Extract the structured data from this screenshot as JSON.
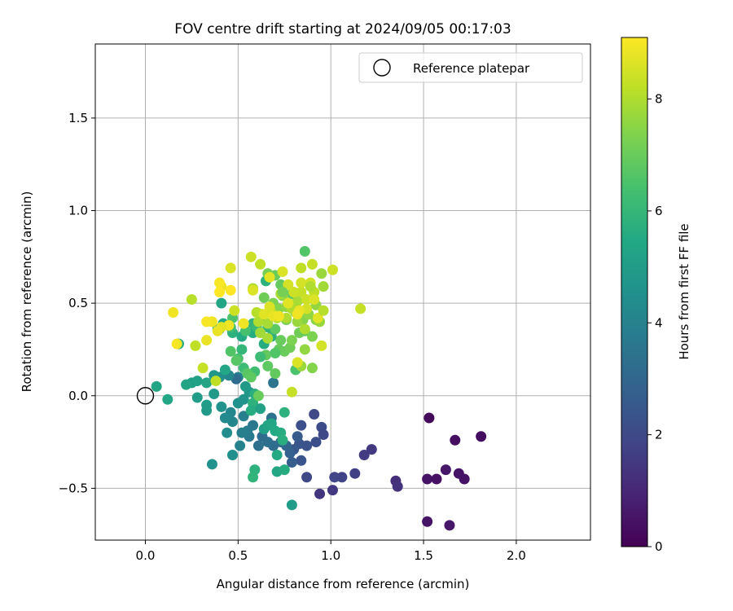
{
  "chart_data": {
    "type": "scatter",
    "title": "FOV centre drift starting at 2024/09/05 00:17:03",
    "xlabel": "Angular distance from reference (arcmin)",
    "ylabel": "Rotation from reference (arcmin)",
    "xlim": [
      -0.27,
      2.4
    ],
    "ylim": [
      -0.78,
      1.9
    ],
    "x_ticks": [
      0.0,
      0.5,
      1.0,
      1.5,
      2.0
    ],
    "x_tick_labels": [
      "0.0",
      "0.5",
      "1.0",
      "1.5",
      "2.0"
    ],
    "y_ticks": [
      -0.5,
      0.0,
      0.5,
      1.0,
      1.5
    ],
    "y_tick_labels": [
      "−0.5",
      "0.0",
      "0.5",
      "1.0",
      "1.5"
    ],
    "grid": true,
    "legend": {
      "position": "top-right",
      "entries": [
        "Reference platepar"
      ]
    },
    "reference_point": {
      "x": 0.0,
      "y": 0.0
    },
    "colorbar": {
      "label": "Hours from first FF file",
      "min": 0,
      "max": 9.1,
      "ticks": [
        0,
        2,
        4,
        6,
        8
      ],
      "tick_labels": [
        "0",
        "2",
        "4",
        "6",
        "8"
      ],
      "colormap": "viridis"
    },
    "points": [
      [
        1.53,
        -0.12,
        0.2
      ],
      [
        1.67,
        -0.24,
        0.3
      ],
      [
        1.81,
        -0.22,
        0.3
      ],
      [
        1.52,
        -0.45,
        0.5
      ],
      [
        1.57,
        -0.45,
        0.4
      ],
      [
        1.62,
        -0.4,
        0.6
      ],
      [
        1.69,
        -0.42,
        0.5
      ],
      [
        1.72,
        -0.45,
        0.5
      ],
      [
        1.52,
        -0.68,
        0.5
      ],
      [
        1.64,
        -0.7,
        0.6
      ],
      [
        1.35,
        -0.46,
        1.2
      ],
      [
        1.36,
        -0.49,
        1.3
      ],
      [
        1.22,
        -0.29,
        1.5
      ],
      [
        1.18,
        -0.32,
        1.6
      ],
      [
        1.13,
        -0.42,
        1.7
      ],
      [
        1.06,
        -0.44,
        1.8
      ],
      [
        1.02,
        -0.44,
        1.9
      ],
      [
        1.01,
        -0.51,
        1.5
      ],
      [
        0.94,
        -0.53,
        1.4
      ],
      [
        0.87,
        -0.44,
        2.0
      ],
      [
        0.91,
        -0.1,
        2.0
      ],
      [
        0.95,
        -0.17,
        2.1
      ],
      [
        0.96,
        -0.21,
        2.0
      ],
      [
        0.92,
        -0.25,
        2.2
      ],
      [
        0.87,
        -0.27,
        2.3
      ],
      [
        0.83,
        -0.26,
        2.4
      ],
      [
        0.8,
        -0.29,
        2.5
      ],
      [
        0.84,
        -0.35,
        2.4
      ],
      [
        0.84,
        -0.16,
        2.2
      ],
      [
        0.82,
        -0.22,
        2.6
      ],
      [
        0.78,
        -0.31,
        2.8
      ],
      [
        0.79,
        -0.36,
        2.7
      ],
      [
        0.76,
        -0.27,
        3.0
      ],
      [
        0.73,
        -0.25,
        3.1
      ],
      [
        0.69,
        -0.27,
        3.2
      ],
      [
        0.66,
        -0.25,
        3.3
      ],
      [
        0.63,
        -0.22,
        3.2
      ],
      [
        0.61,
        -0.27,
        3.4
      ],
      [
        0.68,
        -0.12,
        3.4
      ],
      [
        0.69,
        0.07,
        3.5
      ],
      [
        0.58,
        -0.16,
        3.6
      ],
      [
        0.56,
        -0.22,
        3.7
      ],
      [
        0.55,
        -0.19,
        3.8
      ],
      [
        0.52,
        -0.2,
        3.9
      ],
      [
        0.53,
        -0.11,
        3.9
      ],
      [
        0.51,
        -0.27,
        4.0
      ],
      [
        0.47,
        -0.14,
        4.1
      ],
      [
        0.46,
        -0.09,
        4.2
      ],
      [
        0.43,
        -0.12,
        4.3
      ],
      [
        0.44,
        -0.2,
        4.4
      ],
      [
        0.47,
        -0.32,
        4.5
      ],
      [
        0.36,
        -0.37,
        4.6
      ],
      [
        0.5,
        -0.04,
        4.6
      ],
      [
        0.53,
        -0.02,
        4.7
      ],
      [
        0.56,
        0.02,
        4.8
      ],
      [
        0.54,
        0.05,
        4.9
      ],
      [
        0.5,
        0.1,
        4.0
      ],
      [
        0.49,
        0.09,
        3.2
      ],
      [
        0.45,
        0.11,
        4.2
      ],
      [
        0.4,
        0.1,
        4.5
      ],
      [
        0.37,
        0.11,
        4.8
      ],
      [
        0.41,
        -0.06,
        4.6
      ],
      [
        0.37,
        0.01,
        4.9
      ],
      [
        0.33,
        -0.05,
        5.0
      ],
      [
        0.33,
        -0.08,
        4.9
      ],
      [
        0.28,
        -0.01,
        5.0
      ],
      [
        0.25,
        0.07,
        5.1
      ],
      [
        0.28,
        0.08,
        5.2
      ],
      [
        0.22,
        0.06,
        5.3
      ],
      [
        0.12,
        -0.02,
        5.4
      ],
      [
        0.06,
        0.05,
        5.3
      ],
      [
        0.18,
        0.28,
        5.5
      ],
      [
        0.43,
        0.14,
        5.4
      ],
      [
        0.33,
        0.07,
        5.3
      ],
      [
        0.4,
        0.36,
        5.6
      ],
      [
        0.42,
        0.39,
        5.5
      ],
      [
        0.39,
        0.36,
        5.7
      ],
      [
        0.41,
        0.5,
        5.4
      ],
      [
        0.47,
        0.34,
        5.8
      ],
      [
        0.52,
        0.32,
        5.5
      ],
      [
        0.58,
        0.34,
        5.6
      ],
      [
        0.58,
        0.39,
        5.9
      ],
      [
        0.59,
        0.01,
        5.7
      ],
      [
        0.58,
        -0.04,
        5.8
      ],
      [
        0.57,
        -0.08,
        5.6
      ],
      [
        0.62,
        -0.07,
        5.2
      ],
      [
        0.64,
        -0.18,
        5.1
      ],
      [
        0.66,
        -0.16,
        5.3
      ],
      [
        0.68,
        -0.15,
        5.4
      ],
      [
        0.7,
        -0.19,
        5.5
      ],
      [
        0.73,
        -0.2,
        5.6
      ],
      [
        0.74,
        -0.24,
        5.7
      ],
      [
        0.71,
        -0.32,
        5.5
      ],
      [
        0.75,
        -0.09,
        5.8
      ],
      [
        0.71,
        -0.41,
        5.4
      ],
      [
        0.75,
        -0.4,
        5.6
      ],
      [
        0.59,
        -0.4,
        5.8
      ],
      [
        0.58,
        -0.44,
        5.9
      ],
      [
        0.79,
        -0.59,
        5.0
      ],
      [
        0.64,
        0.28,
        5.6
      ],
      [
        0.68,
        0.32,
        5.8
      ],
      [
        0.66,
        0.37,
        5.9
      ],
      [
        0.62,
        0.41,
        6.0
      ],
      [
        0.65,
        0.62,
        5.8
      ],
      [
        0.6,
        0.37,
        6.1
      ],
      [
        0.52,
        0.25,
        6.0
      ],
      [
        0.53,
        0.15,
        6.2
      ],
      [
        0.59,
        0.13,
        6.3
      ],
      [
        0.54,
        0.35,
        6.4
      ],
      [
        0.46,
        0.37,
        6.3
      ],
      [
        0.47,
        0.42,
        6.5
      ],
      [
        0.5,
        0.2,
        6.4
      ],
      [
        0.46,
        0.24,
        6.6
      ],
      [
        0.49,
        0.19,
        6.7
      ],
      [
        0.55,
        0.12,
        6.7
      ],
      [
        0.57,
        0.1,
        6.8
      ],
      [
        0.61,
        0.0,
        7.0
      ],
      [
        0.66,
        0.16,
        6.8
      ],
      [
        0.65,
        0.22,
        6.9
      ],
      [
        0.7,
        0.12,
        6.9
      ],
      [
        0.72,
        0.25,
        6.9
      ],
      [
        0.75,
        0.24,
        7.0
      ],
      [
        0.78,
        0.26,
        7.1
      ],
      [
        0.73,
        0.3,
        7.0
      ],
      [
        0.7,
        0.36,
        6.8
      ],
      [
        0.76,
        0.41,
        7.2
      ],
      [
        0.81,
        0.14,
        6.5
      ],
      [
        0.79,
        0.3,
        7.3
      ],
      [
        0.83,
        0.34,
        7.1
      ],
      [
        0.86,
        0.35,
        6.9
      ],
      [
        0.86,
        0.78,
        6.6
      ],
      [
        0.79,
        0.55,
        6.8
      ],
      [
        0.73,
        0.6,
        6.9
      ],
      [
        0.7,
        0.65,
        7.0
      ],
      [
        0.66,
        0.66,
        7.2
      ],
      [
        0.64,
        0.53,
        7.1
      ],
      [
        0.69,
        0.5,
        7.3
      ],
      [
        0.72,
        0.47,
        7.4
      ],
      [
        0.74,
        0.54,
        7.5
      ],
      [
        0.76,
        0.48,
        7.6
      ],
      [
        0.81,
        0.45,
        7.5
      ],
      [
        0.85,
        0.41,
        7.4
      ],
      [
        0.88,
        0.44,
        7.6
      ],
      [
        0.9,
        0.32,
        7.3
      ],
      [
        0.92,
        0.41,
        7.5
      ],
      [
        0.92,
        0.49,
        7.6
      ],
      [
        0.94,
        0.4,
        7.7
      ],
      [
        0.95,
        0.66,
        7.7
      ],
      [
        0.96,
        0.59,
        7.8
      ],
      [
        0.9,
        0.15,
        7.4
      ],
      [
        0.84,
        0.16,
        7.7
      ],
      [
        0.86,
        0.25,
        7.6
      ],
      [
        0.82,
        0.4,
        7.7
      ],
      [
        0.82,
        0.51,
        7.9
      ],
      [
        0.79,
        0.47,
        8.0
      ],
      [
        0.76,
        0.42,
        8.0
      ],
      [
        0.73,
        0.55,
        7.9
      ],
      [
        0.71,
        0.42,
        8.1
      ],
      [
        0.68,
        0.45,
        8.2
      ],
      [
        0.66,
        0.39,
        7.9
      ],
      [
        0.63,
        0.44,
        7.8
      ],
      [
        0.61,
        0.4,
        8.0
      ],
      [
        0.6,
        0.45,
        8.1
      ],
      [
        0.62,
        0.34,
        7.8
      ],
      [
        0.66,
        0.31,
        7.9
      ],
      [
        0.58,
        0.58,
        8.0
      ],
      [
        0.62,
        0.71,
        8.2
      ],
      [
        0.84,
        0.69,
        8.2
      ],
      [
        0.84,
        0.56,
        8.3
      ],
      [
        0.87,
        0.52,
        8.4
      ],
      [
        0.9,
        0.71,
        8.3
      ],
      [
        0.91,
        0.56,
        8.2
      ],
      [
        0.84,
        0.61,
        8.5
      ],
      [
        0.8,
        0.56,
        8.4
      ],
      [
        0.77,
        0.6,
        8.5
      ],
      [
        0.74,
        0.67,
        8.6
      ],
      [
        0.67,
        0.64,
        8.7
      ],
      [
        0.67,
        0.48,
        8.6
      ],
      [
        0.64,
        0.44,
        8.7
      ],
      [
        0.69,
        0.43,
        8.8
      ],
      [
        0.87,
        0.47,
        8.5
      ],
      [
        0.91,
        0.52,
        8.6
      ],
      [
        0.93,
        0.42,
        8.7
      ],
      [
        0.89,
        0.61,
        8.5
      ],
      [
        0.83,
        0.46,
        8.8
      ],
      [
        0.77,
        0.5,
        8.7
      ],
      [
        0.82,
        0.44,
        8.9
      ],
      [
        1.01,
        0.68,
        8.4
      ],
      [
        1.16,
        0.47,
        8.3
      ],
      [
        0.95,
        0.27,
        8.5
      ],
      [
        0.79,
        0.02,
        8.3
      ],
      [
        0.82,
        0.18,
        8.6
      ],
      [
        0.57,
        0.75,
        8.4
      ],
      [
        0.58,
        0.57,
        8.6
      ],
      [
        0.46,
        0.69,
        8.6
      ],
      [
        0.41,
        0.59,
        8.8
      ],
      [
        0.4,
        0.61,
        9.0
      ],
      [
        0.4,
        0.56,
        9.1
      ],
      [
        0.45,
        0.38,
        8.9
      ],
      [
        0.41,
        0.37,
        8.7
      ],
      [
        0.39,
        0.35,
        8.8
      ],
      [
        0.36,
        0.4,
        8.9
      ],
      [
        0.33,
        0.4,
        9.0
      ],
      [
        0.33,
        0.3,
        8.8
      ],
      [
        0.31,
        0.15,
        8.3
      ],
      [
        0.38,
        0.08,
        8.2
      ],
      [
        0.27,
        0.27,
        8.2
      ],
      [
        0.25,
        0.52,
        8.1
      ],
      [
        0.17,
        0.28,
        9.0
      ],
      [
        0.15,
        0.45,
        8.9
      ],
      [
        0.46,
        0.57,
        9.1
      ],
      [
        0.53,
        0.39,
        8.9
      ],
      [
        0.48,
        0.46,
        8.4
      ],
      [
        0.72,
        0.43,
        8.9
      ],
      [
        0.86,
        0.36,
        8.0
      ],
      [
        0.7,
        0.23,
        6.6
      ],
      [
        0.89,
        0.59,
        8.0
      ],
      [
        0.96,
        0.46,
        8.1
      ],
      [
        0.74,
        0.56,
        7.2
      ],
      [
        0.62,
        0.21,
        6.2
      ]
    ]
  }
}
